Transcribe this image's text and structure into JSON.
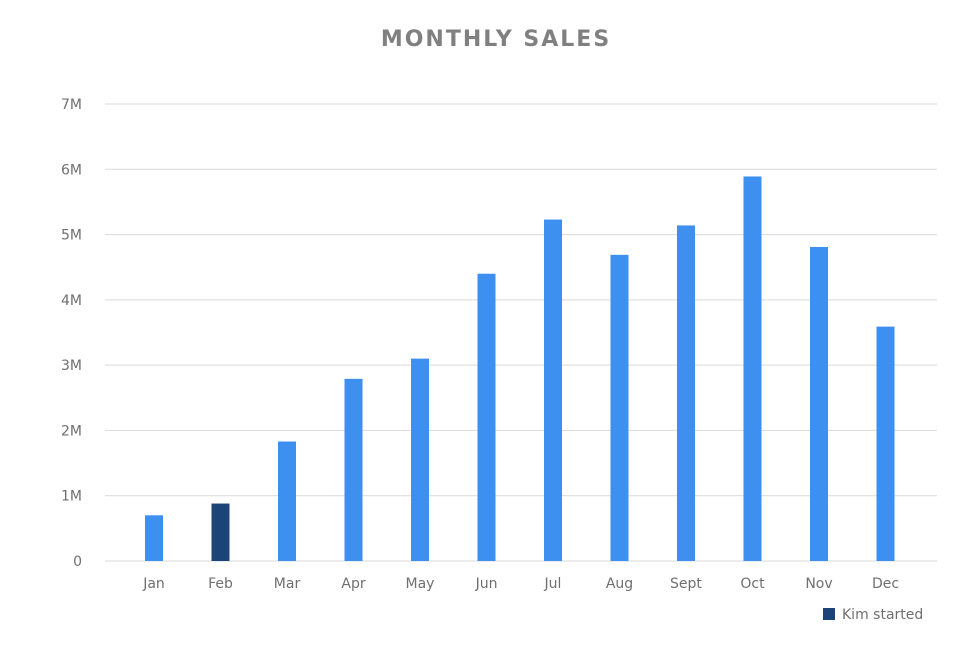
{
  "chart_data": {
    "type": "bar",
    "title": "MONTHLY SALES",
    "xlabel": "",
    "ylabel": "",
    "categories": [
      "Jan",
      "Feb",
      "Mar",
      "Apr",
      "May",
      "Jun",
      "Jul",
      "Aug",
      "Sept",
      "Oct",
      "Nov",
      "Dec"
    ],
    "values": [
      700000,
      880000,
      1830000,
      2790000,
      3100000,
      4400000,
      5230000,
      4690000,
      5140000,
      5890000,
      4810000,
      3590000
    ],
    "ylim": [
      0,
      7000000
    ],
    "yticks": [
      {
        "value": 0,
        "label": "0"
      },
      {
        "value": 1000000,
        "label": "1M"
      },
      {
        "value": 2000000,
        "label": "2M"
      },
      {
        "value": 3000000,
        "label": "3M"
      },
      {
        "value": 4000000,
        "label": "4M"
      },
      {
        "value": 5000000,
        "label": "5M"
      },
      {
        "value": 6000000,
        "label": "6M"
      },
      {
        "value": 7000000,
        "label": "7M"
      }
    ],
    "grid": true,
    "highlight_index": 1,
    "colors": {
      "bar": "#3d8ff0",
      "highlight": "#1c4479",
      "grid": "#d9d9d9",
      "text": "#6f6f6f",
      "title": "#808080"
    },
    "legend": {
      "position": "bottom-right",
      "entries": [
        {
          "label": "Kim started",
          "color": "#1c4479"
        }
      ]
    }
  }
}
